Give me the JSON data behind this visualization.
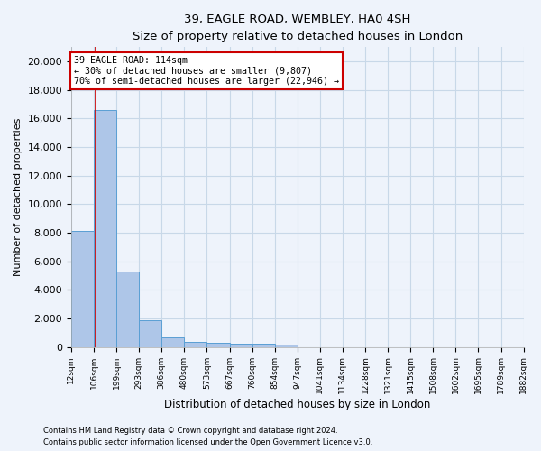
{
  "title_line1": "39, EAGLE ROAD, WEMBLEY, HA0 4SH",
  "title_line2": "Size of property relative to detached houses in London",
  "xlabel": "Distribution of detached houses by size in London",
  "ylabel": "Number of detached properties",
  "footer_line1": "Contains HM Land Registry data © Crown copyright and database right 2024.",
  "footer_line2": "Contains public sector information licensed under the Open Government Licence v3.0.",
  "annotation_title": "39 EAGLE ROAD: 114sqm",
  "annotation_line2": "← 30% of detached houses are smaller (9,807)",
  "annotation_line3": "70% of semi-detached houses are larger (22,946) →",
  "property_size_sqm": 114,
  "bin_edges": [
    12,
    106,
    199,
    293,
    386,
    480,
    573,
    667,
    760,
    854,
    947,
    1041,
    1134,
    1228,
    1321,
    1415,
    1508,
    1602,
    1695,
    1789,
    1882
  ],
  "bin_heights": [
    8100,
    16600,
    5300,
    1850,
    700,
    350,
    270,
    210,
    200,
    150,
    0,
    0,
    0,
    0,
    0,
    0,
    0,
    0,
    0,
    0
  ],
  "bar_color": "#aec6e8",
  "bar_edge_color": "#5a9fd4",
  "red_line_color": "#cc0000",
  "annotation_box_color": "#cc0000",
  "grid_color": "#c8d8e8",
  "background_color": "#eef3fb",
  "ylim": [
    0,
    21000
  ],
  "yticks": [
    0,
    2000,
    4000,
    6000,
    8000,
    10000,
    12000,
    14000,
    16000,
    18000,
    20000
  ]
}
